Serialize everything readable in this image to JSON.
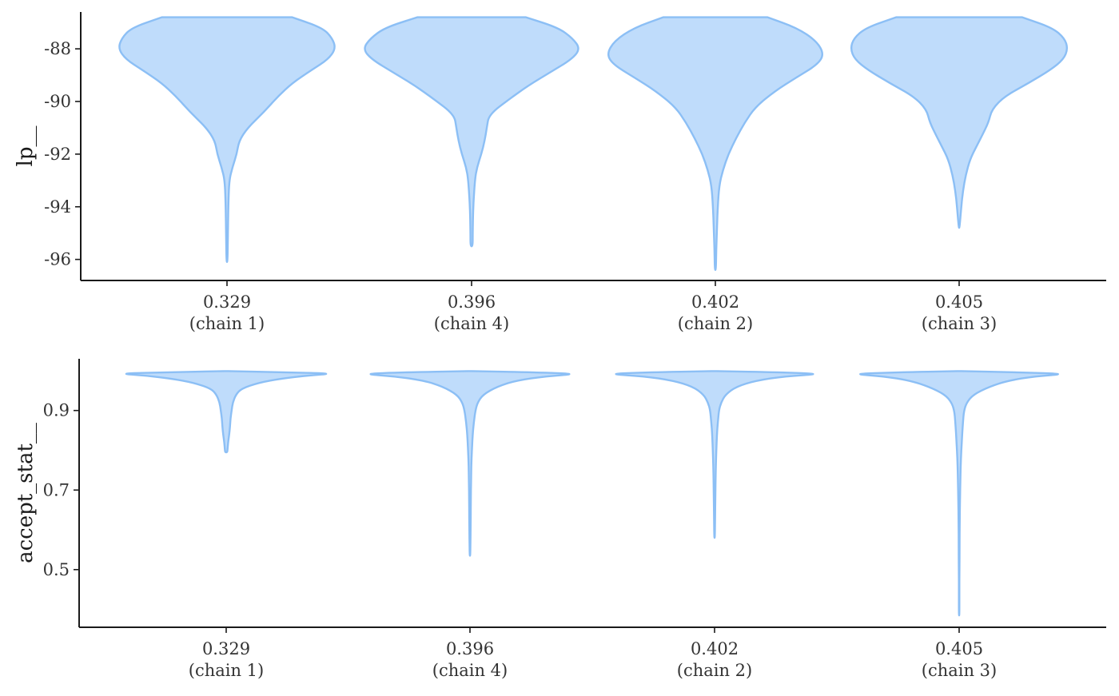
{
  "colors": {
    "violin_fill": "#bfdcfb",
    "violin_outline": "#8cbff5",
    "axis": "#1a1a1a",
    "text": "#333333"
  },
  "chart_data": [
    {
      "type": "violin",
      "ylabel": "lp__",
      "ylim": [
        -96.8,
        -86.6
      ],
      "yticks": [
        -88,
        -90,
        -92,
        -94,
        -96
      ],
      "ytick_labels": [
        "-88",
        "-90",
        "-92",
        "-94",
        "-96"
      ],
      "grid": false,
      "categories": [
        {
          "value": "0.329",
          "chain": "(chain 1)"
        },
        {
          "value": "0.396",
          "chain": "(chain 4)"
        },
        {
          "value": "0.402",
          "chain": "(chain 2)"
        },
        {
          "value": "0.405",
          "chain": "(chain 3)"
        }
      ],
      "series": [
        {
          "category": "0.329",
          "max": -86.8,
          "min": -96.1,
          "density": [
            [
              -86.8,
              0.6
            ],
            [
              -87.2,
              0.88
            ],
            [
              -87.6,
              0.97
            ],
            [
              -88.0,
              1.0
            ],
            [
              -88.4,
              0.93
            ],
            [
              -88.8,
              0.78
            ],
            [
              -89.3,
              0.6
            ],
            [
              -89.8,
              0.47
            ],
            [
              -90.4,
              0.34
            ],
            [
              -91.0,
              0.19
            ],
            [
              -91.5,
              0.11
            ],
            [
              -92.0,
              0.09
            ],
            [
              -92.5,
              0.05
            ],
            [
              -93.0,
              0.02
            ],
            [
              -94.0,
              0.012
            ],
            [
              -95.0,
              0.008
            ],
            [
              -96.1,
              0.005
            ]
          ]
        },
        {
          "category": "0.396",
          "max": -86.8,
          "min": -95.5,
          "density": [
            [
              -86.8,
              0.5
            ],
            [
              -87.2,
              0.8
            ],
            [
              -87.6,
              0.93
            ],
            [
              -88.0,
              1.0
            ],
            [
              -88.4,
              0.92
            ],
            [
              -88.9,
              0.72
            ],
            [
              -89.4,
              0.52
            ],
            [
              -89.9,
              0.35
            ],
            [
              -90.5,
              0.16
            ],
            [
              -91.0,
              0.14
            ],
            [
              -91.5,
              0.12
            ],
            [
              -92.0,
              0.09
            ],
            [
              -92.5,
              0.05
            ],
            [
              -93.0,
              0.03
            ],
            [
              -94.0,
              0.015
            ],
            [
              -95.0,
              0.01
            ],
            [
              -95.5,
              0.01
            ]
          ]
        },
        {
          "category": "0.402",
          "max": -86.8,
          "min": -96.4,
          "density": [
            [
              -86.8,
              0.48
            ],
            [
              -87.2,
              0.75
            ],
            [
              -87.7,
              0.93
            ],
            [
              -88.2,
              1.0
            ],
            [
              -88.6,
              0.94
            ],
            [
              -89.1,
              0.74
            ],
            [
              -89.6,
              0.55
            ],
            [
              -90.2,
              0.37
            ],
            [
              -90.8,
              0.27
            ],
            [
              -91.4,
              0.19
            ],
            [
              -92.0,
              0.12
            ],
            [
              -92.6,
              0.07
            ],
            [
              -93.2,
              0.035
            ],
            [
              -94.0,
              0.022
            ],
            [
              -94.8,
              0.015
            ],
            [
              -95.6,
              0.008
            ],
            [
              -96.4,
              0.005
            ]
          ]
        },
        {
          "category": "0.405",
          "max": -86.8,
          "min": -94.8,
          "density": [
            [
              -86.8,
              0.58
            ],
            [
              -87.2,
              0.86
            ],
            [
              -87.6,
              0.97
            ],
            [
              -88.0,
              1.0
            ],
            [
              -88.4,
              0.96
            ],
            [
              -88.8,
              0.84
            ],
            [
              -89.3,
              0.64
            ],
            [
              -89.8,
              0.42
            ],
            [
              -90.3,
              0.3
            ],
            [
              -90.8,
              0.27
            ],
            [
              -91.3,
              0.21
            ],
            [
              -91.7,
              0.16
            ],
            [
              -92.2,
              0.1
            ],
            [
              -92.8,
              0.06
            ],
            [
              -93.4,
              0.035
            ],
            [
              -94.0,
              0.02
            ],
            [
              -94.8,
              0.004
            ]
          ]
        }
      ]
    },
    {
      "type": "violin",
      "ylabel": "accept_stat__",
      "ylim": [
        0.355,
        1.03
      ],
      "yticks": [
        0.9,
        0.7,
        0.5
      ],
      "ytick_labels": [
        "0.9",
        "0.7",
        "0.5"
      ],
      "grid": false,
      "categories": [
        {
          "value": "0.329",
          "chain": "(chain 1)"
        },
        {
          "value": "0.396",
          "chain": "(chain 4)"
        },
        {
          "value": "0.402",
          "chain": "(chain 2)"
        },
        {
          "value": "0.405",
          "chain": "(chain 3)"
        }
      ],
      "series": [
        {
          "category": "0.329",
          "max": 0.999,
          "min": 0.795,
          "density": [
            [
              0.999,
              0.02
            ],
            [
              0.996,
              0.55
            ],
            [
              0.993,
              1.0
            ],
            [
              0.988,
              0.75
            ],
            [
              0.98,
              0.5
            ],
            [
              0.97,
              0.3
            ],
            [
              0.955,
              0.14
            ],
            [
              0.94,
              0.09
            ],
            [
              0.92,
              0.06
            ],
            [
              0.9,
              0.05
            ],
            [
              0.88,
              0.04
            ],
            [
              0.86,
              0.035
            ],
            [
              0.84,
              0.028
            ],
            [
              0.82,
              0.018
            ],
            [
              0.8,
              0.012
            ],
            [
              0.795,
              0.008
            ]
          ]
        },
        {
          "category": "0.396",
          "max": 0.999,
          "min": 0.535,
          "density": [
            [
              0.999,
              0.02
            ],
            [
              0.996,
              0.6
            ],
            [
              0.992,
              1.0
            ],
            [
              0.986,
              0.7
            ],
            [
              0.975,
              0.42
            ],
            [
              0.96,
              0.25
            ],
            [
              0.94,
              0.12
            ],
            [
              0.92,
              0.07
            ],
            [
              0.9,
              0.05
            ],
            [
              0.87,
              0.035
            ],
            [
              0.84,
              0.025
            ],
            [
              0.8,
              0.018
            ],
            [
              0.76,
              0.012
            ],
            [
              0.72,
              0.01
            ],
            [
              0.68,
              0.008
            ],
            [
              0.63,
              0.007
            ],
            [
              0.58,
              0.005
            ],
            [
              0.535,
              0.003
            ]
          ]
        },
        {
          "category": "0.402",
          "max": 0.999,
          "min": 0.58,
          "density": [
            [
              0.999,
              0.02
            ],
            [
              0.996,
              0.6
            ],
            [
              0.992,
              1.0
            ],
            [
              0.986,
              0.65
            ],
            [
              0.975,
              0.38
            ],
            [
              0.96,
              0.2
            ],
            [
              0.94,
              0.1
            ],
            [
              0.92,
              0.06
            ],
            [
              0.9,
              0.04
            ],
            [
              0.87,
              0.03
            ],
            [
              0.84,
              0.022
            ],
            [
              0.8,
              0.016
            ],
            [
              0.76,
              0.012
            ],
            [
              0.72,
              0.009
            ],
            [
              0.68,
              0.007
            ],
            [
              0.63,
              0.005
            ],
            [
              0.58,
              0.003
            ]
          ]
        },
        {
          "category": "0.405",
          "max": 0.999,
          "min": 0.385,
          "density": [
            [
              0.999,
              0.02
            ],
            [
              0.996,
              0.55
            ],
            [
              0.992,
              1.0
            ],
            [
              0.986,
              0.7
            ],
            [
              0.975,
              0.45
            ],
            [
              0.96,
              0.28
            ],
            [
              0.94,
              0.13
            ],
            [
              0.92,
              0.07
            ],
            [
              0.9,
              0.045
            ],
            [
              0.87,
              0.035
            ],
            [
              0.84,
              0.028
            ],
            [
              0.8,
              0.02
            ],
            [
              0.76,
              0.014
            ],
            [
              0.72,
              0.011
            ],
            [
              0.68,
              0.008
            ],
            [
              0.62,
              0.005
            ],
            [
              0.56,
              0.004
            ],
            [
              0.5,
              0.003
            ],
            [
              0.44,
              0.002
            ],
            [
              0.385,
              0.002
            ]
          ]
        }
      ]
    }
  ]
}
